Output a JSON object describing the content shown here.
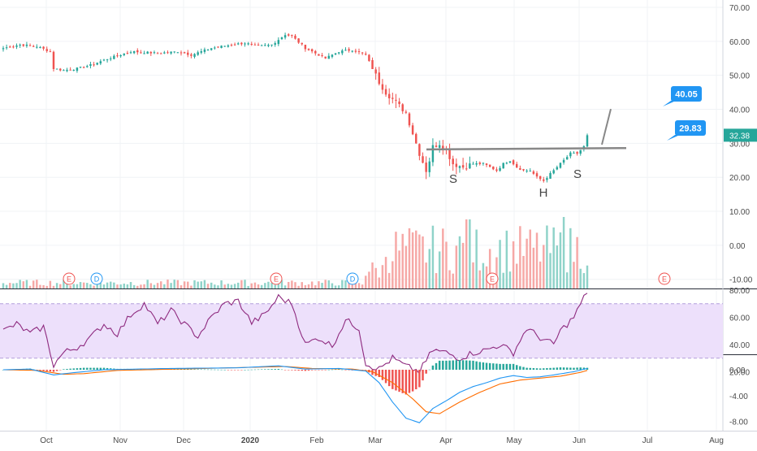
{
  "colors": {
    "up": "#26a69a",
    "down": "#ef5350",
    "vol_up": "#8fd3c9",
    "vol_down": "#f6a8a6",
    "rsi_line": "#8e2a7f",
    "rsi_band": "#ede0fb",
    "macd_line": "#2196f3",
    "signal_line": "#ff6d00",
    "callout": "#2196f3",
    "trend": "#888888",
    "last_price": "#26a69a",
    "event_earnings": "#ef5350",
    "event_dividend": "#2196f3"
  },
  "time_axis": {
    "labels": [
      "Oct",
      "Nov",
      "Dec",
      "2020",
      "Feb",
      "Mar",
      "Apr",
      "May",
      "Jun",
      "Jul",
      "Aug"
    ]
  },
  "chart_data": [
    {
      "type": "candlestick",
      "panel": "price",
      "y_ticks": [
        "70.00",
        "60.00",
        "50.00",
        "40.00",
        "30.00",
        "20.00",
        "10.00",
        "0.00",
        "-10.00"
      ],
      "ylim": [
        -12,
        73
      ],
      "last_price": "32.38",
      "annotations": {
        "callouts": [
          "40.05",
          "29.83"
        ],
        "pattern_letters": [
          "S",
          "H",
          "S"
        ]
      },
      "events": [
        "E",
        "D",
        "E",
        "D",
        "E",
        "E"
      ]
    },
    {
      "type": "line",
      "panel": "rsi",
      "y_ticks": [
        "80.00",
        "60.00",
        "40.00",
        "20.00"
      ],
      "ylim": [
        16,
        82
      ],
      "band": [
        30,
        70
      ]
    },
    {
      "type": "histogram+line",
      "panel": "macd",
      "y_ticks": [
        "0.00",
        "-4.00",
        "-8.00"
      ],
      "ylim": [
        -9,
        1.4
      ]
    }
  ]
}
